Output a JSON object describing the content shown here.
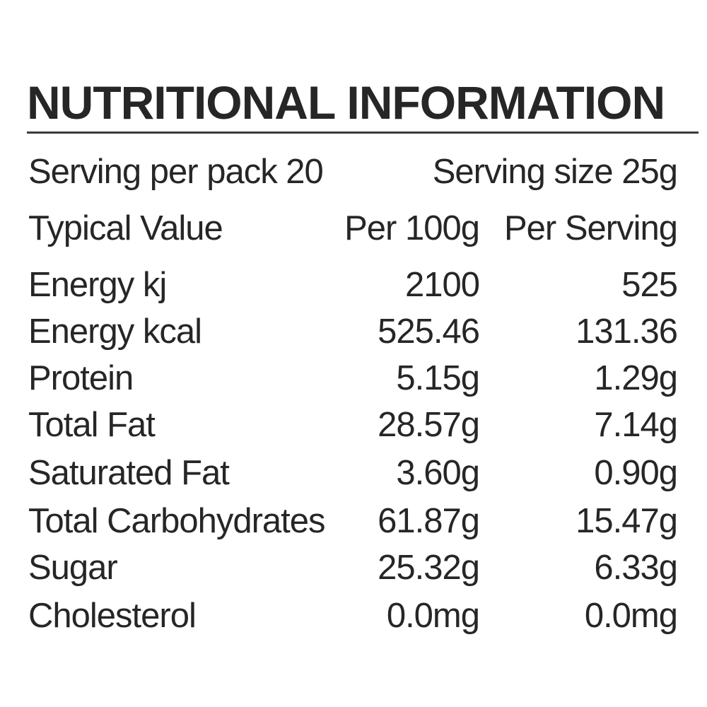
{
  "title": "NUTRITIONAL INFORMATION",
  "serving": {
    "per_pack": "Serving per pack 20",
    "size": "Serving size 25g"
  },
  "header": {
    "label": "Typical Value",
    "col1": "Per 100g",
    "col2": "Per Serving"
  },
  "rows": [
    {
      "label": "Energy kj",
      "per_100g": "2100",
      "per_serving": "525"
    },
    {
      "label": "Energy kcal",
      "per_100g": "525.46",
      "per_serving": "131.36"
    },
    {
      "label": "Protein",
      "per_100g": "5.15g",
      "per_serving": "1.29g"
    },
    {
      "label": "Total Fat",
      "per_100g": "28.57g",
      "per_serving": "7.14g"
    },
    {
      "label": "Saturated Fat",
      "per_100g": "3.60g",
      "per_serving": "0.90g"
    },
    {
      "label": "Total Carbohydrates",
      "per_100g": "61.87g",
      "per_serving": "15.47g"
    },
    {
      "label": "Sugar",
      "per_100g": "25.32g",
      "per_serving": "6.33g"
    },
    {
      "label": "Cholesterol",
      "per_100g": "0.0mg",
      "per_serving": "0.0mg"
    }
  ]
}
